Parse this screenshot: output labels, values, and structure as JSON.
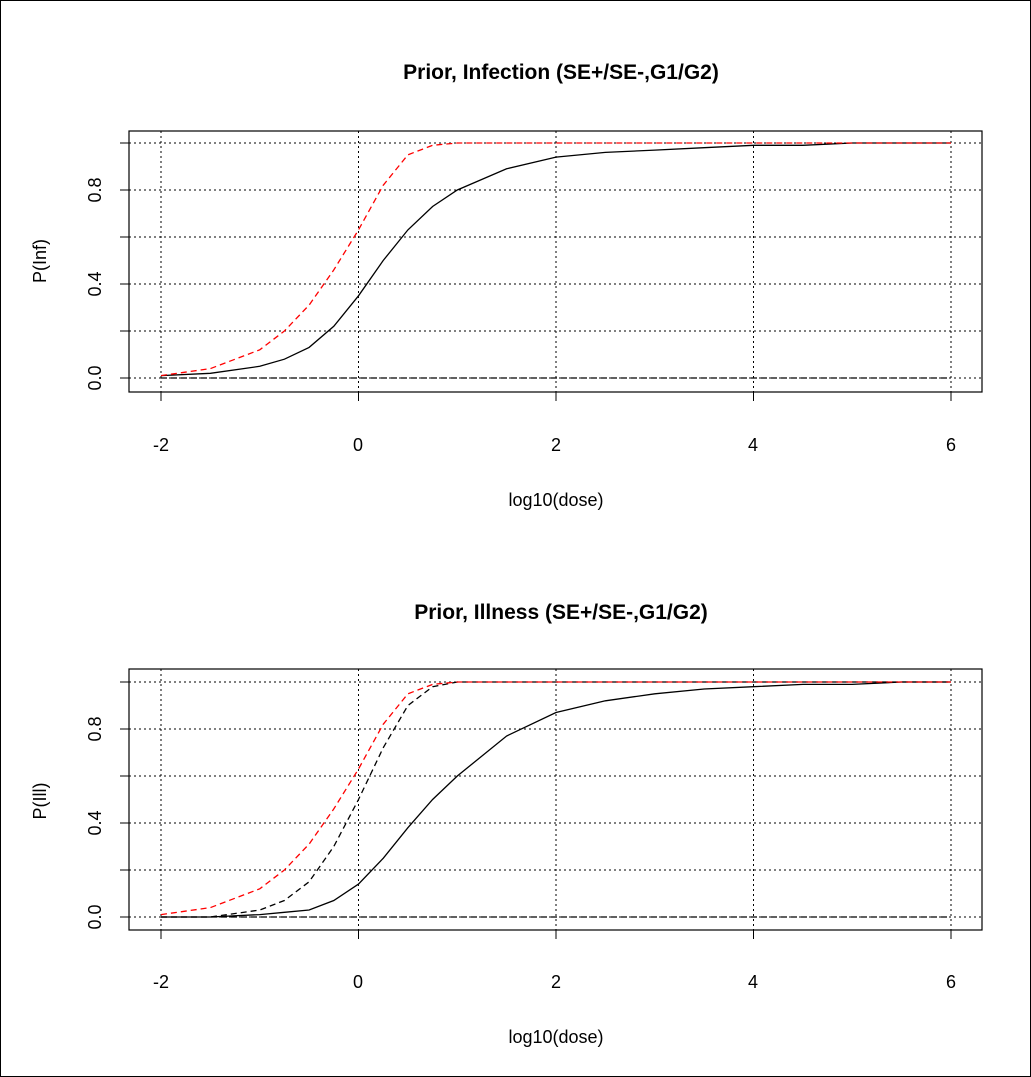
{
  "chart_data": [
    {
      "type": "line",
      "title": "Prior, Infection (SE+/SE-,G1/G2)",
      "xlabel": "log10(dose)",
      "ylabel": "P(Inf)",
      "xlim": [
        -2,
        6
      ],
      "ylim": [
        0,
        1
      ],
      "x_ticks": [
        "-2",
        "0",
        "2",
        "4",
        "6"
      ],
      "y_ticks": [
        "0.0",
        "0.4",
        "0.8"
      ],
      "grid": true,
      "x": [
        -2,
        -1.5,
        -1,
        -0.75,
        -0.5,
        -0.25,
        0,
        0.25,
        0.5,
        0.75,
        1,
        1.5,
        2,
        2.5,
        3,
        3.5,
        4,
        4.5,
        5,
        5.5,
        6
      ],
      "series": [
        {
          "color": "#000000",
          "dash": "solid",
          "values": [
            0.01,
            0.02,
            0.05,
            0.08,
            0.13,
            0.22,
            0.35,
            0.5,
            0.63,
            0.73,
            0.8,
            0.89,
            0.94,
            0.96,
            0.97,
            0.98,
            0.99,
            0.99,
            1.0,
            1.0,
            1.0
          ]
        },
        {
          "color": "#000000",
          "dash": "dashed",
          "values": [
            0,
            0,
            0,
            0,
            0,
            0,
            0,
            0,
            0,
            0,
            0,
            0,
            0,
            0,
            0,
            0,
            0,
            0,
            0,
            0,
            0
          ]
        },
        {
          "color": "#ff0000",
          "dash": "dashed",
          "values": [
            0.01,
            0.04,
            0.12,
            0.2,
            0.31,
            0.46,
            0.63,
            0.82,
            0.95,
            0.99,
            1.0,
            1.0,
            1.0,
            1.0,
            1.0,
            1.0,
            1.0,
            1.0,
            1.0,
            1.0,
            1.0
          ]
        }
      ]
    },
    {
      "type": "line",
      "title": "Prior, Illness (SE+/SE-,G1/G2)",
      "xlabel": "log10(dose)",
      "ylabel": "P(Ill)",
      "xlim": [
        -2,
        6
      ],
      "ylim": [
        0,
        1
      ],
      "x_ticks": [
        "-2",
        "0",
        "2",
        "4",
        "6"
      ],
      "y_ticks": [
        "0.0",
        "0.4",
        "0.8"
      ],
      "grid": true,
      "x": [
        -2,
        -1.5,
        -1,
        -0.75,
        -0.5,
        -0.25,
        0,
        0.25,
        0.5,
        0.75,
        1,
        1.5,
        2,
        2.5,
        3,
        3.5,
        4,
        4.5,
        5,
        5.5,
        6
      ],
      "series": [
        {
          "color": "#000000",
          "dash": "solid",
          "values": [
            0,
            0,
            0.01,
            0.02,
            0.03,
            0.07,
            0.14,
            0.25,
            0.38,
            0.5,
            0.6,
            0.77,
            0.87,
            0.92,
            0.95,
            0.97,
            0.98,
            0.99,
            0.99,
            1.0,
            1.0
          ]
        },
        {
          "color": "#000000",
          "dash": "dashed",
          "values": [
            0,
            0,
            0.03,
            0.07,
            0.15,
            0.3,
            0.5,
            0.72,
            0.9,
            0.98,
            1.0,
            1.0,
            1.0,
            1.0,
            1.0,
            1.0,
            1.0,
            1.0,
            1.0,
            1.0,
            1.0
          ]
        },
        {
          "color": "#000000",
          "dash": "dashed",
          "values": [
            0,
            0,
            0,
            0,
            0,
            0,
            0,
            0,
            0,
            0,
            0,
            0,
            0,
            0,
            0,
            0,
            0,
            0,
            0,
            0,
            0
          ]
        },
        {
          "color": "#ff0000",
          "dash": "dashed",
          "values": [
            0.01,
            0.04,
            0.12,
            0.2,
            0.31,
            0.46,
            0.63,
            0.82,
            0.95,
            0.99,
            1.0,
            1.0,
            1.0,
            1.0,
            1.0,
            1.0,
            1.0,
            1.0,
            1.0,
            1.0,
            1.0
          ]
        }
      ]
    }
  ]
}
